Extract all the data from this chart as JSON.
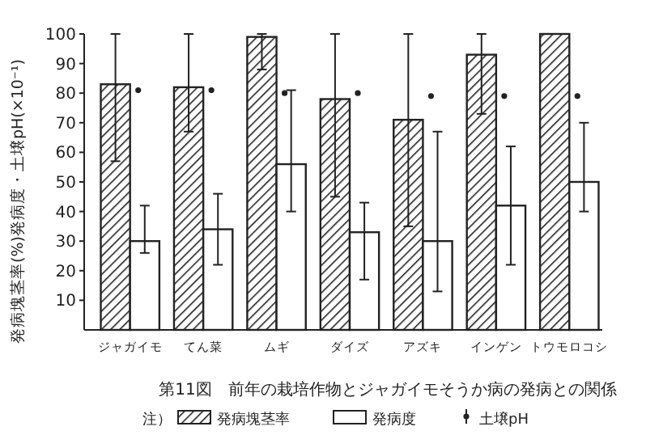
{
  "chart_data": {
    "type": "bar",
    "title": "第11図　前年の栽培作物とジャガイモそうか病の発病との関係",
    "ylabel": "発病塊茎率(%)発病度・土壌pH(×10⁻¹)",
    "legend_title": "注）",
    "categories": [
      "ジャガイモ",
      "てん菜",
      "ムギ",
      "ダイズ",
      "アズキ",
      "インゲン",
      "トウモロコシ"
    ],
    "series": [
      {
        "name": "発病塊茎率",
        "color": "#222222",
        "values": [
          83,
          82,
          99,
          78,
          71,
          93,
          100
        ],
        "errors": [
          [
            57,
            100
          ],
          [
            67,
            100
          ],
          [
            88,
            100
          ],
          [
            45,
            100
          ],
          [
            35,
            100
          ],
          [
            73,
            100
          ],
          null
        ]
      },
      {
        "name": "発病度",
        "color": "#ffffff",
        "values": [
          30,
          34,
          56,
          33,
          30,
          42,
          50
        ],
        "errors": [
          [
            26,
            42
          ],
          [
            22,
            46
          ],
          [
            40,
            81
          ],
          [
            17,
            43
          ],
          [
            13,
            67
          ],
          [
            22,
            62
          ],
          [
            40,
            70
          ]
        ]
      },
      {
        "name": "土壌pH",
        "type": "scatter",
        "color": "#222222",
        "marker": "circle",
        "values": [
          81,
          81,
          80,
          80,
          79,
          79,
          79
        ]
      }
    ],
    "ylim": [
      0,
      100
    ],
    "yticks": [
      10,
      20,
      30,
      40,
      50,
      60,
      70,
      80,
      90,
      100
    ],
    "grid": false,
    "legend": "bottom"
  }
}
